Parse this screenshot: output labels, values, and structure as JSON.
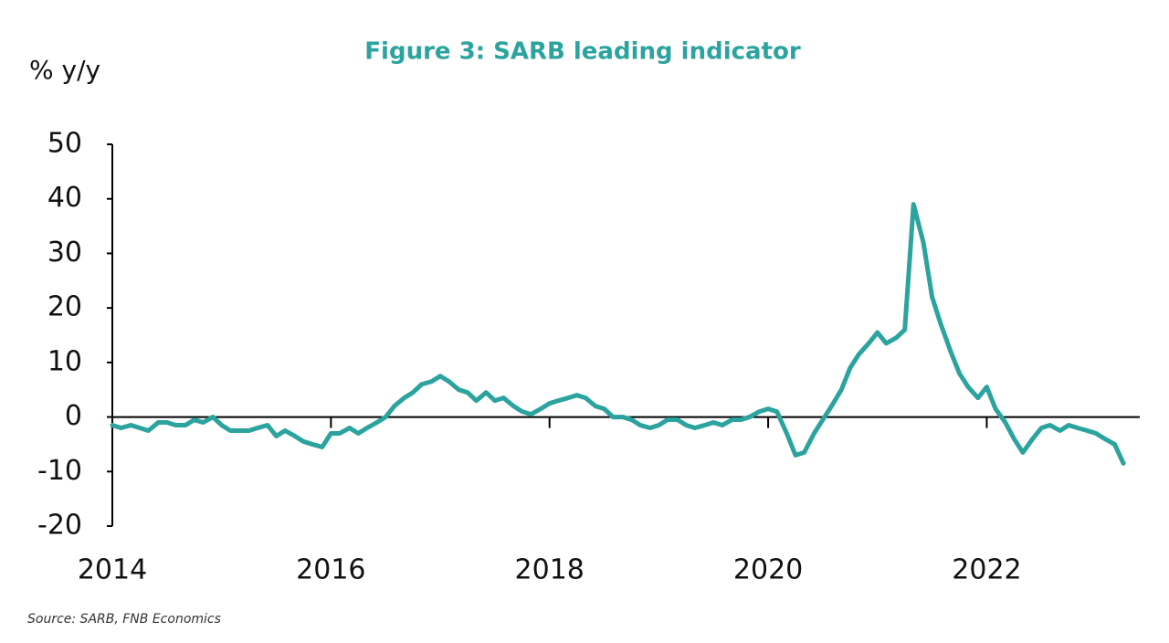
{
  "chart_data": {
    "type": "line",
    "title": "Figure 3: SARB leading indicator",
    "ylabel": "% y/y",
    "source": "Source: SARB, FNB Economics",
    "xlim": [
      2014,
      2023.4
    ],
    "xticks": [
      2014,
      2016,
      2018,
      2020,
      2022
    ],
    "ylim": [
      -20,
      50
    ],
    "yticks": [
      -20,
      -10,
      0,
      10,
      20,
      30,
      40,
      50
    ],
    "series": [
      {
        "name": "SARB leading indicator",
        "color": "#2ba39e",
        "x": [
          2014,
          2014.08,
          2014.17,
          2014.25,
          2014.33,
          2014.42,
          2014.5,
          2014.58,
          2014.67,
          2014.75,
          2014.83,
          2014.92,
          2015,
          2015.08,
          2015.17,
          2015.25,
          2015.33,
          2015.42,
          2015.5,
          2015.58,
          2015.67,
          2015.75,
          2015.83,
          2015.92,
          2016,
          2016.08,
          2016.17,
          2016.25,
          2016.33,
          2016.42,
          2016.5,
          2016.58,
          2016.67,
          2016.75,
          2016.83,
          2016.92,
          2017,
          2017.08,
          2017.17,
          2017.25,
          2017.33,
          2017.42,
          2017.5,
          2017.58,
          2017.67,
          2017.75,
          2017.83,
          2017.92,
          2018,
          2018.08,
          2018.17,
          2018.25,
          2018.33,
          2018.42,
          2018.5,
          2018.58,
          2018.67,
          2018.75,
          2018.83,
          2018.92,
          2019,
          2019.08,
          2019.17,
          2019.25,
          2019.33,
          2019.42,
          2019.5,
          2019.58,
          2019.67,
          2019.75,
          2019.83,
          2019.92,
          2020,
          2020.08,
          2020.17,
          2020.25,
          2020.33,
          2020.42,
          2020.5,
          2020.58,
          2020.67,
          2020.75,
          2020.83,
          2020.92,
          2021,
          2021.08,
          2021.17,
          2021.25,
          2021.33,
          2021.42,
          2021.5,
          2021.58,
          2021.67,
          2021.75,
          2021.83,
          2021.92,
          2022,
          2022.08,
          2022.17,
          2022.25,
          2022.33,
          2022.42,
          2022.5,
          2022.58,
          2022.67,
          2022.75,
          2022.83,
          2022.92,
          2023,
          2023.08,
          2023.17,
          2023.25
        ],
        "values": [
          -1.5,
          -2,
          -1.5,
          -2,
          -2.5,
          -1,
          -1,
          -1.5,
          -1.5,
          -0.5,
          -1,
          0,
          -1.5,
          -2.5,
          -2.5,
          -2.5,
          -2,
          -1.5,
          -3.5,
          -2.5,
          -3.5,
          -4.5,
          -5,
          -5.5,
          -3,
          -3,
          -2,
          -3,
          -2,
          -1,
          0,
          2,
          3.5,
          4.5,
          6,
          6.5,
          7.5,
          6.5,
          5,
          4.5,
          3,
          4.5,
          3,
          3.5,
          2,
          1,
          0.5,
          1.5,
          2.5,
          3,
          3.5,
          4,
          3.5,
          2,
          1.5,
          0,
          0,
          -0.5,
          -1.5,
          -2,
          -1.5,
          -0.5,
          -0.5,
          -1.5,
          -2,
          -1.5,
          -1,
          -1.5,
          -0.5,
          -0.5,
          0,
          1,
          1.5,
          1,
          -3,
          -7,
          -6.5,
          -3,
          -0.5,
          2,
          5,
          9,
          11.5,
          13.5,
          15.5,
          13.5,
          14.5,
          16,
          39,
          32,
          22,
          17,
          12,
          8,
          5.5,
          3.5,
          5.5,
          1.5,
          -1,
          -4,
          -6.5,
          -4,
          -2,
          -1.5,
          -2.5,
          -1.5,
          -2,
          -2.5,
          -3,
          -4,
          -5,
          -8.5
        ]
      }
    ]
  }
}
